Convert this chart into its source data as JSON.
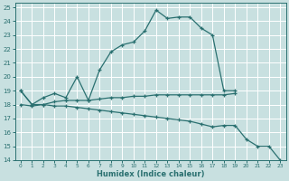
{
  "xlabel": "Humidex (Indice chaleur)",
  "xlim": [
    -0.5,
    23.5
  ],
  "ylim": [
    14,
    25.3
  ],
  "yticks": [
    14,
    15,
    16,
    17,
    18,
    19,
    20,
    21,
    22,
    23,
    24,
    25
  ],
  "xticks": [
    0,
    1,
    2,
    3,
    4,
    5,
    6,
    7,
    8,
    9,
    10,
    11,
    12,
    13,
    14,
    15,
    16,
    17,
    18,
    19,
    20,
    21,
    22,
    23
  ],
  "bg_color": "#c8e0e0",
  "grid_color": "#ffffff",
  "line_color": "#2a7070",
  "line1_x": [
    0,
    1,
    2,
    3,
    4,
    5,
    6,
    7,
    8,
    9,
    10,
    11,
    12,
    13,
    14,
    15,
    16,
    17,
    18,
    19
  ],
  "line1_y": [
    19.0,
    18.0,
    18.5,
    18.8,
    18.5,
    20.0,
    18.3,
    20.5,
    21.8,
    22.3,
    22.5,
    23.3,
    24.8,
    24.2,
    24.3,
    24.3,
    23.5,
    23.0,
    19.0,
    19.0
  ],
  "line2_x": [
    0,
    1,
    2,
    3,
    4,
    5,
    6,
    7,
    8,
    9,
    10,
    11,
    12,
    13,
    14,
    15,
    16,
    17,
    18,
    19
  ],
  "line2_y": [
    18.0,
    17.9,
    18.0,
    18.2,
    18.3,
    18.3,
    18.3,
    18.4,
    18.5,
    18.5,
    18.6,
    18.6,
    18.7,
    18.7,
    18.7,
    18.7,
    18.7,
    18.7,
    18.7,
    18.8
  ],
  "line3_x": [
    0,
    1,
    2,
    3,
    4,
    5,
    6,
    7,
    8,
    9,
    10,
    11,
    12,
    13,
    14,
    15,
    16,
    17,
    18,
    19,
    20,
    21,
    22,
    23
  ],
  "line3_y": [
    19.0,
    18.0,
    18.0,
    17.9,
    17.9,
    17.8,
    17.7,
    17.6,
    17.5,
    17.4,
    17.3,
    17.2,
    17.1,
    17.0,
    16.9,
    16.8,
    16.6,
    16.4,
    16.5,
    16.5,
    15.5,
    15.0,
    15.0,
    14.0
  ]
}
